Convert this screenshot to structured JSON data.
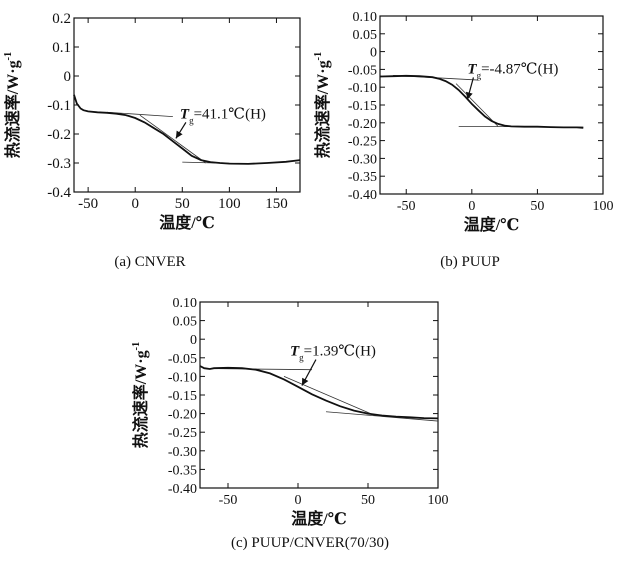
{
  "chart_data": [
    {
      "type": "line",
      "caption": "(a) CNVER",
      "xlabel": "温度/℃",
      "ylabel": "热流速率/W·g",
      "ylabel_sup": "-1",
      "xlim": [
        -65,
        175
      ],
      "ylim": [
        -0.4,
        0.2
      ],
      "xticks": [
        -50,
        0,
        50,
        100,
        150
      ],
      "yticks": [
        -0.4,
        -0.3,
        -0.2,
        -0.1,
        0,
        0.1,
        0.2
      ],
      "ytick_labels": [
        "-0.4",
        "-0.3",
        "-0.2",
        "-0.1",
        "0",
        "0.1",
        "0.2"
      ],
      "grid": false,
      "annotation": {
        "symbol": "T",
        "sub": "g",
        "text": "=41.1℃(H)",
        "point": [
          41.1,
          -0.222
        ]
      },
      "series": [
        {
          "x": [
            -65,
            -62,
            -58,
            -55,
            -50,
            -40,
            -30,
            -20,
            -10,
            0,
            10,
            20,
            30,
            40,
            50,
            60,
            70,
            80,
            90,
            100,
            120,
            140,
            160,
            175
          ],
          "y": [
            -0.065,
            -0.095,
            -0.112,
            -0.118,
            -0.122,
            -0.125,
            -0.127,
            -0.13,
            -0.135,
            -0.145,
            -0.16,
            -0.18,
            -0.2,
            -0.225,
            -0.25,
            -0.275,
            -0.29,
            -0.297,
            -0.3,
            -0.302,
            -0.303,
            -0.3,
            -0.296,
            -0.29
          ]
        }
      ],
      "tangents": [
        {
          "x": [
            -30,
            40
          ],
          "y": [
            -0.125,
            -0.14
          ]
        },
        {
          "x": [
            5,
            75
          ],
          "y": [
            -0.135,
            -0.3
          ]
        },
        {
          "x": [
            50,
            110
          ],
          "y": [
            -0.297,
            -0.302
          ]
        }
      ]
    },
    {
      "type": "line",
      "caption": "(b) PUUP",
      "xlabel": "温度/℃",
      "ylabel": "热流速率/W·g",
      "ylabel_sup": "-1",
      "xlim": [
        -70,
        100
      ],
      "ylim": [
        -0.4,
        0.1
      ],
      "xticks": [
        -50,
        0,
        50,
        100
      ],
      "yticks": [
        -0.4,
        -0.35,
        -0.3,
        -0.25,
        -0.2,
        -0.15,
        -0.1,
        -0.05,
        0,
        0.05,
        0.1
      ],
      "ytick_labels": [
        "-0.40",
        "-0.35",
        "-0.30",
        "-0.25",
        "-0.20",
        "-0.15",
        "-0.10",
        "-0.05",
        "0",
        "0.05",
        "0.10"
      ],
      "grid": false,
      "annotation": {
        "symbol": "T",
        "sub": "g",
        "text": "=-4.87℃(H)",
        "point": [
          -4.87,
          -0.14
        ]
      },
      "series": [
        {
          "x": [
            -70,
            -60,
            -50,
            -40,
            -30,
            -25,
            -20,
            -15,
            -10,
            -5,
            0,
            5,
            10,
            15,
            20,
            25,
            30,
            40,
            50,
            60,
            70,
            80,
            85
          ],
          "y": [
            -0.07,
            -0.069,
            -0.068,
            -0.069,
            -0.072,
            -0.076,
            -0.083,
            -0.093,
            -0.108,
            -0.127,
            -0.147,
            -0.165,
            -0.182,
            -0.195,
            -0.203,
            -0.208,
            -0.21,
            -0.211,
            -0.211,
            -0.212,
            -0.213,
            -0.213,
            -0.214
          ]
        }
      ],
      "tangents": [
        {
          "x": [
            -60,
            5
          ],
          "y": [
            -0.067,
            -0.08
          ]
        },
        {
          "x": [
            -12,
            20
          ],
          "y": [
            -0.09,
            -0.21
          ]
        },
        {
          "x": [
            -10,
            85
          ],
          "y": [
            -0.21,
            -0.212
          ]
        }
      ]
    },
    {
      "type": "line",
      "caption": "(c) PUUP/CNVER(70/30)",
      "xlabel": "温度/℃",
      "ylabel": "热流速率/W·g",
      "ylabel_sup": "-1",
      "xlim": [
        -70,
        100
      ],
      "ylim": [
        -0.4,
        0.1
      ],
      "xticks": [
        -50,
        0,
        50,
        100
      ],
      "yticks": [
        -0.4,
        -0.35,
        -0.3,
        -0.25,
        -0.2,
        -0.15,
        -0.1,
        -0.05,
        0,
        0.05,
        0.1
      ],
      "ytick_labels": [
        "-0.40",
        "-0.35",
        "-0.30",
        "-0.25",
        "-0.20",
        "-0.15",
        "-0.10",
        "-0.05",
        "0",
        "0.05",
        "0.10"
      ],
      "grid": false,
      "annotation": {
        "symbol": "T",
        "sub": "g",
        "text": "=1.39℃(H)",
        "point": [
          1.39,
          -0.13
        ]
      },
      "series": [
        {
          "x": [
            -70,
            -67,
            -63,
            -60,
            -50,
            -40,
            -30,
            -20,
            -10,
            0,
            10,
            20,
            30,
            40,
            50,
            60,
            70,
            80,
            90,
            100
          ],
          "y": [
            -0.072,
            -0.078,
            -0.08,
            -0.078,
            -0.077,
            -0.078,
            -0.082,
            -0.092,
            -0.108,
            -0.128,
            -0.148,
            -0.165,
            -0.18,
            -0.192,
            -0.2,
            -0.205,
            -0.208,
            -0.21,
            -0.212,
            -0.213
          ]
        }
      ],
      "tangents": [
        {
          "x": [
            -60,
            10
          ],
          "y": [
            -0.079,
            -0.082
          ]
        },
        {
          "x": [
            -10,
            55
          ],
          "y": [
            -0.1,
            -0.205
          ]
        },
        {
          "x": [
            20,
            100
          ],
          "y": [
            -0.195,
            -0.22
          ]
        }
      ]
    }
  ]
}
